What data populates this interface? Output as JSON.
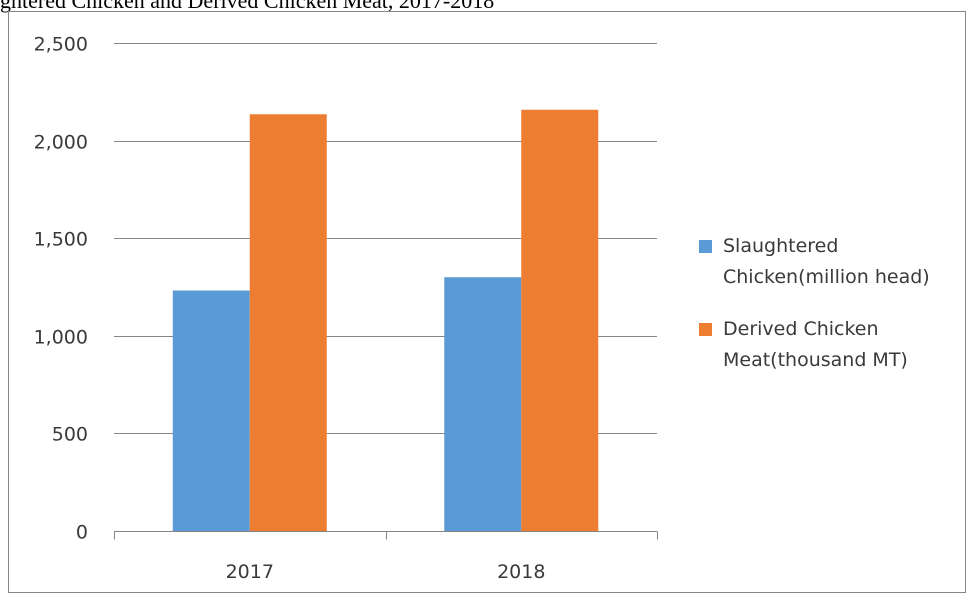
{
  "page": {
    "title_fragment": "ghtered Chicken and Derived Chicken Meat, 2017-2018"
  },
  "chart_data": {
    "type": "bar",
    "title": "",
    "xlabel": "",
    "ylabel": "",
    "categories": [
      "2017",
      "2018"
    ],
    "series": [
      {
        "name": "Slaughtered Chicken(million head)",
        "legend_lines": [
          "Slaughtered",
          "Chicken(million head)"
        ],
        "color": "#5b9bd5",
        "values": [
          1232,
          1300
        ]
      },
      {
        "name": "Derived Chicken Meat(thousand MT)",
        "legend_lines": [
          "Derived Chicken",
          "Meat(thousand MT)"
        ],
        "color": "#ed7d31",
        "values": [
          2135,
          2158
        ]
      }
    ],
    "ylim": [
      0,
      2500
    ],
    "yticks": [
      0,
      500,
      1000,
      1500,
      2000,
      2500
    ],
    "ytick_labels": [
      "0",
      "500",
      "1,000",
      "1,500",
      "2,000",
      "2,500"
    ],
    "grid": true,
    "gridline_color": "#868686",
    "legend_position": "right"
  }
}
